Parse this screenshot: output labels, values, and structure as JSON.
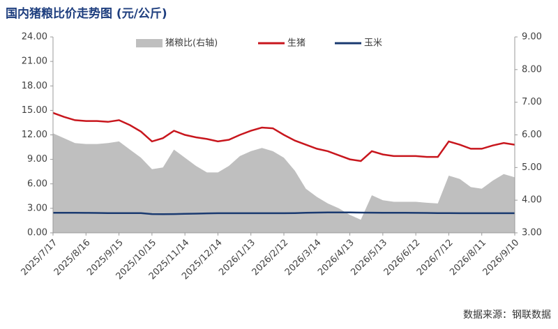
{
  "chart_data": {
    "type": "line",
    "title": "国内猪粮比价走势图 (元/公斤)",
    "source": "数据来源：钢联数据",
    "categories": [
      "2025/7/17",
      null,
      null,
      "2025/8/16",
      null,
      null,
      "2025/9/15",
      null,
      null,
      "2025/10/15",
      null,
      null,
      "2025/11/14",
      null,
      null,
      "2025/12/14",
      null,
      null,
      "2026/1/13",
      null,
      null,
      "2026/2/12",
      null,
      null,
      "2026/3/14",
      null,
      null,
      "2026/4/13",
      null,
      null,
      "2026/5/13",
      null,
      null,
      "2026/6/12",
      null,
      null,
      "2026/7/12",
      null,
      null,
      "2026/8/11",
      null,
      null,
      "2026/9/10"
    ],
    "series": [
      {
        "name": "猪粮比(右轴)",
        "type": "area",
        "axis": "y2",
        "color": "#bfbfbf",
        "values": [
          6.05,
          5.9,
          5.75,
          5.72,
          5.72,
          5.75,
          5.8,
          5.55,
          5.3,
          4.95,
          5.0,
          5.55,
          5.3,
          5.05,
          4.85,
          4.85,
          5.05,
          5.35,
          5.5,
          5.6,
          5.5,
          5.3,
          4.9,
          4.35,
          4.1,
          3.9,
          3.75,
          3.55,
          3.4,
          4.15,
          4.0,
          3.95,
          3.95,
          3.95,
          3.92,
          3.9,
          4.75,
          4.65,
          4.4,
          4.35,
          4.6,
          4.8,
          4.7
        ]
      },
      {
        "name": "生猪",
        "type": "line",
        "color": "#c8161d",
        "values": [
          14.7,
          14.2,
          13.8,
          13.7,
          13.7,
          13.6,
          13.8,
          13.2,
          12.4,
          11.2,
          11.6,
          12.5,
          12.0,
          11.7,
          11.5,
          11.2,
          11.4,
          12.0,
          12.5,
          12.9,
          12.8,
          12.0,
          11.3,
          10.8,
          10.3,
          10.0,
          9.5,
          9.0,
          8.8,
          10.0,
          9.6,
          9.4,
          9.4,
          9.4,
          9.3,
          9.3,
          11.2,
          10.8,
          10.3,
          10.3,
          10.7,
          11.0,
          10.8
        ]
      },
      {
        "name": "玉米",
        "type": "line",
        "color": "#1a3a70",
        "values": [
          2.45,
          2.45,
          2.45,
          2.44,
          2.43,
          2.42,
          2.42,
          2.42,
          2.42,
          2.3,
          2.28,
          2.3,
          2.32,
          2.35,
          2.38,
          2.4,
          2.4,
          2.4,
          2.4,
          2.4,
          2.4,
          2.4,
          2.42,
          2.45,
          2.48,
          2.5,
          2.5,
          2.5,
          2.48,
          2.47,
          2.46,
          2.45,
          2.45,
          2.44,
          2.43,
          2.42,
          2.42,
          2.4,
          2.4,
          2.4,
          2.4,
          2.4,
          2.4
        ]
      }
    ],
    "ylim": [
      0,
      24
    ],
    "yticks": [
      {
        "value": 0,
        "label": "0.00"
      },
      {
        "value": 3,
        "label": "3.00"
      },
      {
        "value": 6,
        "label": "6.00"
      },
      {
        "value": 9,
        "label": "9.00"
      },
      {
        "value": 12,
        "label": "12.00"
      },
      {
        "value": 15,
        "label": "15.00"
      },
      {
        "value": 18,
        "label": "18.00"
      },
      {
        "value": 21,
        "label": "21.00"
      },
      {
        "value": 24,
        "label": "24.00"
      }
    ],
    "y2lim": [
      3,
      9
    ],
    "y2ticks": [
      {
        "value": 3,
        "label": "3.00"
      },
      {
        "value": 4,
        "label": "4.00"
      },
      {
        "value": 5,
        "label": "5.00"
      },
      {
        "value": 6,
        "label": "6.00"
      },
      {
        "value": 7,
        "label": "7.00"
      },
      {
        "value": 8,
        "label": "8.00"
      },
      {
        "value": 9,
        "label": "9.00"
      }
    ]
  }
}
